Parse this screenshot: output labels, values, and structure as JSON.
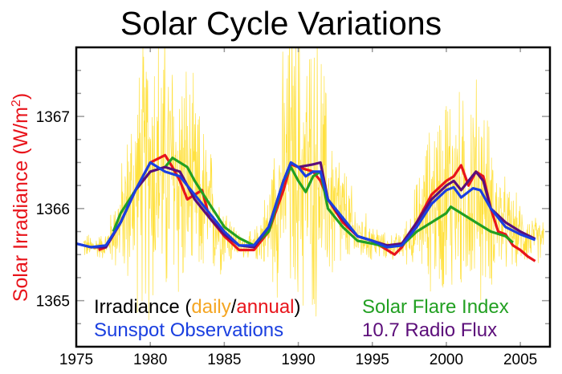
{
  "chart_data": {
    "type": "line",
    "title": "Solar Cycle Variations",
    "xlabel": "",
    "ylabel": "Solar Irradiance (W/m",
    "ylabel_sup": "2",
    "ylabel_close": ")",
    "xlim": [
      1975,
      2007
    ],
    "ylim": [
      1364.5,
      1367.75
    ],
    "x_ticks": [
      "1975",
      "1980",
      "1985",
      "1990",
      "1995",
      "2000",
      "2005"
    ],
    "y_ticks": [
      "1365",
      "1366",
      "1367"
    ],
    "grid": false,
    "legend": {
      "irradiance_label": "Irradiance (",
      "daily_label": "daily",
      "slash": "/",
      "annual_label": "annual",
      "close_paren": ")",
      "sunspot_label": "Sunspot Observations",
      "flare_label": "Solar Flare Index",
      "radio_label": "10.7 Radio Flux",
      "placement": "bottom"
    },
    "colors": {
      "daily": "#ffd700",
      "daily_text": "#f5a623",
      "annual": "#e8141b",
      "sunspot": "#1a3fe0",
      "flare": "#22a022",
      "radio": "#5c0e7a"
    },
    "series": [
      {
        "name": "annual",
        "color": "#e8141b",
        "points": [
          [
            1976.5,
            1365.55
          ],
          [
            1977,
            1365.58
          ],
          [
            1978,
            1365.85
          ],
          [
            1979,
            1366.2
          ],
          [
            1980,
            1366.5
          ],
          [
            1981,
            1366.58
          ],
          [
            1981.5,
            1366.45
          ],
          [
            1982,
            1366.3
          ],
          [
            1982.5,
            1366.1
          ],
          [
            1983,
            1366.15
          ],
          [
            1983.5,
            1366.2
          ],
          [
            1984,
            1365.9
          ],
          [
            1985,
            1365.7
          ],
          [
            1986,
            1365.55
          ],
          [
            1987,
            1365.55
          ],
          [
            1988,
            1365.75
          ],
          [
            1989,
            1366.2
          ],
          [
            1989.5,
            1366.48
          ],
          [
            1990,
            1366.45
          ],
          [
            1991,
            1366.4
          ],
          [
            1991.5,
            1366.3
          ],
          [
            1992,
            1366.1
          ],
          [
            1993,
            1365.85
          ],
          [
            1994,
            1365.7
          ],
          [
            1995,
            1365.65
          ],
          [
            1996,
            1365.55
          ],
          [
            1996.5,
            1365.5
          ],
          [
            1997,
            1365.58
          ],
          [
            1998,
            1365.85
          ],
          [
            1999,
            1366.15
          ],
          [
            2000,
            1366.3
          ],
          [
            2000.5,
            1366.35
          ],
          [
            2001,
            1366.47
          ],
          [
            2001.5,
            1366.25
          ],
          [
            2002,
            1366.4
          ],
          [
            2002.5,
            1366.35
          ],
          [
            2003,
            1366.0
          ],
          [
            2003.5,
            1365.75
          ],
          [
            2004,
            1365.72
          ],
          [
            2004.5,
            1365.6
          ],
          [
            2005,
            1365.55
          ],
          [
            2005.5,
            1365.48
          ],
          [
            2006,
            1365.43
          ]
        ]
      },
      {
        "name": "Solar Flare Index",
        "color": "#22a022",
        "points": [
          [
            1977.5,
            1365.75
          ],
          [
            1978,
            1365.95
          ],
          [
            1979,
            1366.2
          ],
          [
            1980,
            1366.4
          ],
          [
            1981,
            1366.45
          ],
          [
            1981.5,
            1366.55
          ],
          [
            1982,
            1366.5
          ],
          [
            1982.5,
            1366.45
          ],
          [
            1983,
            1366.3
          ],
          [
            1984,
            1366.05
          ],
          [
            1985,
            1365.8
          ],
          [
            1986,
            1365.68
          ],
          [
            1987,
            1365.6
          ],
          [
            1988,
            1365.75
          ],
          [
            1989,
            1366.3
          ],
          [
            1989.5,
            1366.45
          ],
          [
            1990,
            1366.3
          ],
          [
            1990.5,
            1366.18
          ],
          [
            1991,
            1366.35
          ],
          [
            1991.5,
            1366.4
          ],
          [
            1992,
            1366.0
          ],
          [
            1993,
            1365.8
          ],
          [
            1994,
            1365.65
          ],
          [
            1995,
            1365.62
          ],
          [
            1996,
            1365.58
          ],
          [
            1997,
            1365.6
          ],
          [
            1998,
            1365.75
          ],
          [
            1999,
            1365.85
          ],
          [
            2000,
            1365.95
          ],
          [
            2000.3,
            1366.02
          ],
          [
            2001,
            1365.95
          ],
          [
            2002,
            1365.85
          ],
          [
            2003,
            1365.75
          ],
          [
            2004,
            1365.7
          ],
          [
            2004.5,
            1365.63
          ]
        ]
      },
      {
        "name": "10.7 Radio Flux",
        "color": "#5c0e7a",
        "points": [
          [
            1975,
            1365.62
          ],
          [
            1976,
            1365.58
          ],
          [
            1977,
            1365.58
          ],
          [
            1978,
            1365.85
          ],
          [
            1979,
            1366.2
          ],
          [
            1980,
            1366.4
          ],
          [
            1981,
            1366.45
          ],
          [
            1982,
            1366.4
          ],
          [
            1983,
            1366.1
          ],
          [
            1984,
            1365.9
          ],
          [
            1985,
            1365.72
          ],
          [
            1986,
            1365.6
          ],
          [
            1987,
            1365.58
          ],
          [
            1988,
            1365.8
          ],
          [
            1989,
            1366.3
          ],
          [
            1989.5,
            1366.5
          ],
          [
            1990,
            1366.45
          ],
          [
            1991,
            1366.48
          ],
          [
            1991.5,
            1366.5
          ],
          [
            1992,
            1366.1
          ],
          [
            1993,
            1365.88
          ],
          [
            1994,
            1365.7
          ],
          [
            1995,
            1365.65
          ],
          [
            1996,
            1365.6
          ],
          [
            1997,
            1365.62
          ],
          [
            1998,
            1365.85
          ],
          [
            1999,
            1366.1
          ],
          [
            2000,
            1366.25
          ],
          [
            2000.5,
            1366.3
          ],
          [
            2001,
            1366.2
          ],
          [
            2002,
            1366.4
          ],
          [
            2002.5,
            1366.3
          ],
          [
            2003,
            1366.0
          ],
          [
            2004,
            1365.85
          ],
          [
            2005,
            1365.75
          ],
          [
            2006,
            1365.67
          ]
        ]
      },
      {
        "name": "Sunspot Observations",
        "color": "#1a3fe0",
        "points": [
          [
            1975,
            1365.62
          ],
          [
            1976,
            1365.58
          ],
          [
            1977,
            1365.6
          ],
          [
            1978,
            1365.85
          ],
          [
            1979,
            1366.2
          ],
          [
            1980,
            1366.5
          ],
          [
            1981,
            1366.4
          ],
          [
            1982,
            1366.35
          ],
          [
            1983,
            1366.15
          ],
          [
            1984,
            1365.95
          ],
          [
            1985,
            1365.75
          ],
          [
            1986,
            1365.6
          ],
          [
            1987,
            1365.6
          ],
          [
            1988,
            1365.8
          ],
          [
            1989,
            1366.3
          ],
          [
            1989.5,
            1366.5
          ],
          [
            1990,
            1366.45
          ],
          [
            1990.5,
            1366.35
          ],
          [
            1991,
            1366.4
          ],
          [
            1991.5,
            1366.4
          ],
          [
            1992,
            1366.1
          ],
          [
            1993,
            1365.9
          ],
          [
            1994,
            1365.7
          ],
          [
            1995,
            1365.65
          ],
          [
            1996,
            1365.58
          ],
          [
            1997,
            1365.6
          ],
          [
            1998,
            1365.8
          ],
          [
            1999,
            1366.05
          ],
          [
            2000,
            1366.2
          ],
          [
            2000.5,
            1366.23
          ],
          [
            2001,
            1366.12
          ],
          [
            2001.8,
            1366.22
          ],
          [
            2002.3,
            1366.2
          ],
          [
            2003,
            1366.0
          ],
          [
            2003.5,
            1365.9
          ],
          [
            2004,
            1365.8
          ],
          [
            2005,
            1365.72
          ],
          [
            2006,
            1365.66
          ]
        ]
      }
    ]
  }
}
